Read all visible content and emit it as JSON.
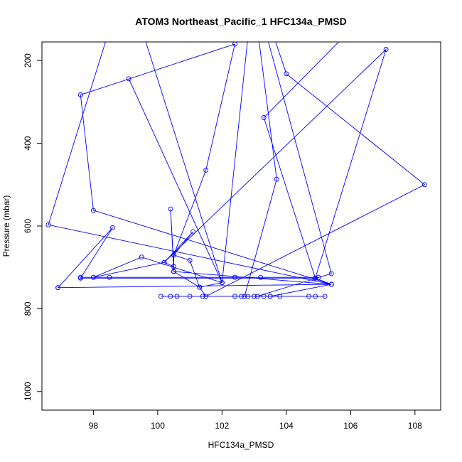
{
  "chart_data": {
    "type": "line",
    "title": "ATOM3 Northeast_Pacific_1 HFC134a_PMSD",
    "xlabel": "HFC134a_PMSD",
    "ylabel": "Pressure (mbar)",
    "xlim": [
      96.4,
      108.8
    ],
    "ylim": [
      1045,
      155
    ],
    "y_inverted": true,
    "xticks": [
      98,
      100,
      102,
      104,
      106,
      108
    ],
    "yticks": [
      200,
      400,
      600,
      800,
      1000
    ],
    "grid": false,
    "legend": "none",
    "series_color": "#0000ff",
    "marker": "open-circle",
    "series": [
      {
        "points": [
          [
            105.2,
            770
          ],
          [
            104.9,
            770
          ],
          [
            104.7,
            770
          ],
          [
            103.8,
            770
          ],
          [
            103.5,
            770
          ],
          [
            103.3,
            770
          ],
          [
            103.0,
            770
          ],
          [
            102.8,
            770
          ],
          [
            102.6,
            770
          ],
          [
            102.4,
            770
          ],
          [
            101.4,
            770
          ],
          [
            101.0,
            770
          ],
          [
            100.6,
            770
          ],
          [
            100.4,
            770
          ],
          [
            100.1,
            770
          ],
          [
            102.7,
            770
          ],
          [
            103.7,
            487
          ],
          [
            102.9,
            0
          ],
          [
            105.4,
            715
          ],
          [
            103.1,
            770
          ],
          [
            103.5,
            770
          ],
          [
            105.4,
            741
          ],
          [
            100.5,
            710
          ],
          [
            101.3,
            748
          ],
          [
            101.5,
            770
          ],
          [
            108.3,
            500
          ],
          [
            104.0,
            232
          ],
          [
            103.0,
            0
          ],
          [
            102.0,
            737
          ],
          [
            99.0,
            0
          ],
          [
            96.6,
            597
          ],
          [
            105.4,
            741
          ],
          [
            96.9,
            749
          ],
          [
            105.4,
            741
          ],
          [
            98.0,
            562
          ],
          [
            97.6,
            283
          ],
          [
            102.4,
            160
          ],
          [
            101.5,
            465
          ],
          [
            100.5,
            670
          ],
          [
            100.5,
            710
          ],
          [
            100.4,
            559
          ],
          [
            100.5,
            698
          ],
          [
            100.2,
            688
          ],
          [
            101.1,
            614
          ],
          [
            100.5,
            670
          ],
          [
            101.0,
            683
          ],
          [
            101.3,
            748
          ],
          [
            102.0,
            737
          ],
          [
            99.1,
            244
          ],
          [
            102.0,
            737
          ],
          [
            99.5,
            675
          ],
          [
            98.0,
            724
          ],
          [
            97.6,
            724
          ],
          [
            98.5,
            724
          ],
          [
            105.0,
            724
          ],
          [
            103.2,
            724
          ],
          [
            102.4,
            724
          ],
          [
            98.0,
            724
          ],
          [
            100.2,
            688
          ],
          [
            107.1,
            173
          ],
          [
            104.9,
            726
          ],
          [
            97.6,
            726
          ],
          [
            98.6,
            604
          ],
          [
            96.9,
            749
          ],
          [
            105.4,
            741
          ],
          [
            104.9,
            726
          ],
          [
            103.3,
            338
          ],
          [
            107.6,
            0
          ]
        ]
      }
    ]
  }
}
